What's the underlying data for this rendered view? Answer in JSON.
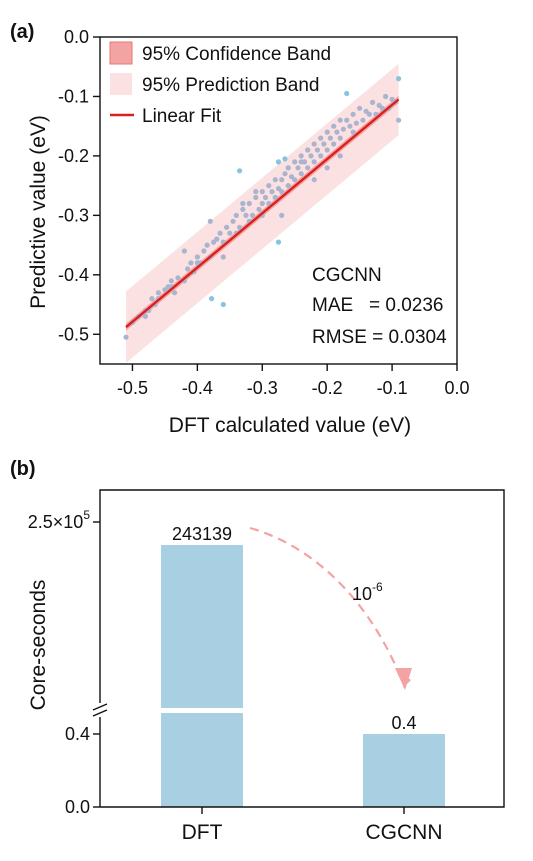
{
  "chart_data": [
    {
      "panel_label": "(a)",
      "type": "scatter",
      "xlabel": "DFT calculated value (eV)",
      "ylabel": "Predictive value (eV)",
      "xlim": [
        -0.55,
        0.0
      ],
      "ylim": [
        -0.55,
        0.0
      ],
      "x_ticks": [
        "-0.5",
        "-0.4",
        "-0.3",
        "-0.2",
        "-0.1",
        "0.0"
      ],
      "y_ticks": [
        "-0.5",
        "-0.4",
        "-0.3",
        "-0.2",
        "-0.1",
        "0.0"
      ],
      "legend": [
        {
          "label": "95% Confidence Band",
          "kind": "band",
          "color": "#f4a3a3"
        },
        {
          "label": "95% Prediction Band",
          "kind": "band",
          "color": "#fbe1e1"
        },
        {
          "label": "Linear Fit",
          "kind": "line",
          "color": "#d92020"
        }
      ],
      "legend_position": "top-left",
      "fit": {
        "x": [
          -0.51,
          -0.09
        ],
        "y": [
          -0.488,
          -0.105
        ]
      },
      "prediction_band_halfwidth": 0.06,
      "confidence_band_halfwidth": 0.006,
      "point_color": "#a9b4cf",
      "outlier_color": "#88c4e0",
      "annotation": {
        "model": "CGCNN",
        "mae": "MAE   = 0.0236",
        "rmse": "RMSE = 0.0304"
      },
      "outliers": {
        "x": [
          -0.17,
          -0.335,
          -0.275,
          -0.265,
          -0.09,
          -0.378,
          -0.36,
          -0.275
        ],
        "y": [
          -0.095,
          -0.225,
          -0.21,
          -0.205,
          -0.07,
          -0.44,
          -0.45,
          -0.345
        ]
      },
      "points": {
        "x": [
          -0.51,
          -0.5,
          -0.49,
          -0.48,
          -0.475,
          -0.47,
          -0.465,
          -0.46,
          -0.45,
          -0.445,
          -0.44,
          -0.435,
          -0.43,
          -0.42,
          -0.415,
          -0.41,
          -0.405,
          -0.4,
          -0.395,
          -0.39,
          -0.385,
          -0.38,
          -0.375,
          -0.37,
          -0.365,
          -0.36,
          -0.355,
          -0.35,
          -0.345,
          -0.34,
          -0.335,
          -0.33,
          -0.325,
          -0.32,
          -0.315,
          -0.31,
          -0.305,
          -0.3,
          -0.3,
          -0.295,
          -0.29,
          -0.29,
          -0.285,
          -0.28,
          -0.28,
          -0.275,
          -0.27,
          -0.27,
          -0.265,
          -0.26,
          -0.26,
          -0.255,
          -0.25,
          -0.25,
          -0.245,
          -0.24,
          -0.24,
          -0.235,
          -0.23,
          -0.23,
          -0.225,
          -0.22,
          -0.22,
          -0.215,
          -0.21,
          -0.21,
          -0.205,
          -0.2,
          -0.2,
          -0.195,
          -0.19,
          -0.19,
          -0.185,
          -0.18,
          -0.18,
          -0.175,
          -0.17,
          -0.165,
          -0.16,
          -0.155,
          -0.15,
          -0.145,
          -0.14,
          -0.135,
          -0.13,
          -0.125,
          -0.12,
          -0.115,
          -0.11,
          -0.105,
          -0.1,
          -0.095,
          -0.09,
          -0.3,
          -0.31,
          -0.32,
          -0.33,
          -0.34,
          -0.26,
          -0.27,
          -0.28,
          -0.22,
          -0.24,
          -0.2,
          -0.18,
          -0.16,
          -0.36,
          -0.38,
          -0.4,
          -0.42,
          -0.44,
          -0.46,
          -0.48
        ],
        "y": [
          -0.505,
          -0.48,
          -0.47,
          -0.46,
          -0.46,
          -0.44,
          -0.45,
          -0.43,
          -0.425,
          -0.42,
          -0.41,
          -0.43,
          -0.405,
          -0.41,
          -0.39,
          -0.38,
          -0.395,
          -0.37,
          -0.38,
          -0.36,
          -0.35,
          -0.37,
          -0.345,
          -0.34,
          -0.33,
          -0.345,
          -0.32,
          -0.33,
          -0.31,
          -0.3,
          -0.32,
          -0.29,
          -0.3,
          -0.28,
          -0.3,
          -0.27,
          -0.29,
          -0.26,
          -0.28,
          -0.27,
          -0.25,
          -0.28,
          -0.26,
          -0.24,
          -0.27,
          -0.255,
          -0.24,
          -0.26,
          -0.23,
          -0.22,
          -0.25,
          -0.235,
          -0.21,
          -0.24,
          -0.22,
          -0.2,
          -0.23,
          -0.21,
          -0.19,
          -0.22,
          -0.2,
          -0.18,
          -0.21,
          -0.19,
          -0.17,
          -0.2,
          -0.18,
          -0.16,
          -0.19,
          -0.17,
          -0.15,
          -0.18,
          -0.16,
          -0.14,
          -0.17,
          -0.155,
          -0.14,
          -0.15,
          -0.13,
          -0.145,
          -0.12,
          -0.14,
          -0.125,
          -0.13,
          -0.11,
          -0.13,
          -0.115,
          -0.12,
          -0.1,
          -0.12,
          -0.105,
          -0.11,
          -0.14,
          -0.3,
          -0.26,
          -0.31,
          -0.28,
          -0.33,
          -0.22,
          -0.3,
          -0.27,
          -0.24,
          -0.21,
          -0.22,
          -0.2,
          -0.16,
          -0.37,
          -0.31,
          -0.38,
          -0.36,
          -0.42,
          -0.44,
          -0.47
        ]
      }
    },
    {
      "panel_label": "(b)",
      "type": "bar",
      "ylabel": "Core-seconds",
      "categories": [
        "DFT",
        "CGCNN"
      ],
      "values": [
        243139,
        0.4
      ],
      "value_labels": [
        "243139",
        "0.4"
      ],
      "bar_color": "#a9cfe2",
      "broken_y_axis": true,
      "upper_ylim": [
        200000,
        250000
      ],
      "lower_ylim": [
        0,
        0.5
      ],
      "y_ticks": [
        {
          "label": "2.5×10",
          "sup": "5",
          "value": 250000
        },
        {
          "label": "0.4",
          "value": 0.4
        },
        {
          "label": "0.0",
          "value": 0
        }
      ],
      "arrow_annotation": {
        "base": "10",
        "sup": "-6",
        "color": "#f3a3a3"
      }
    }
  ]
}
